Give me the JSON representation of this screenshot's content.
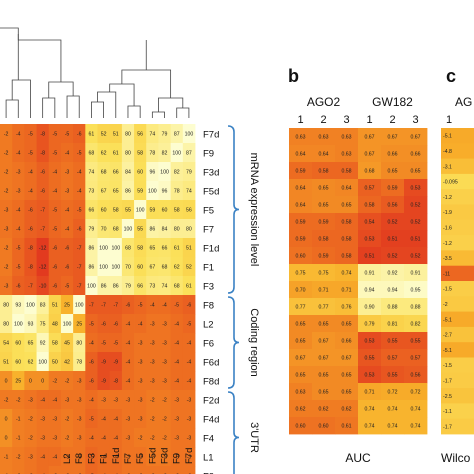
{
  "chart_data": [
    {
      "type": "heatmap",
      "title": "",
      "rows": [
        "F7d",
        "F9",
        "F3d",
        "F5d",
        "F5",
        "F7",
        "F1d",
        "F1",
        "F3",
        "F8",
        "L2",
        "F6",
        "F6d",
        "F8d",
        "F2d",
        "F4d",
        "F4",
        "L1",
        "F2"
      ],
      "columns": [
        "?",
        "?",
        "?",
        "?",
        "?",
        "L2",
        "F8",
        "F3",
        "F1",
        "F1d",
        "F7",
        "F5",
        "F5d",
        "F3d",
        "F9",
        "F7d"
      ],
      "column_labels_visible": [
        "",
        "",
        "",
        "",
        "",
        "L2",
        "F8",
        "F3",
        "F1",
        "F1d",
        "F7",
        "F5",
        "F5d",
        "F3d",
        "F9",
        "F7d"
      ],
      "values": [
        [
          -2,
          -4,
          -5,
          -8,
          -5,
          -5,
          -6,
          61,
          52,
          51,
          80,
          56,
          74,
          79,
          87,
          100
        ],
        [
          -2,
          -4,
          -5,
          -8,
          -5,
          -4,
          -5,
          68,
          62,
          61,
          80,
          58,
          78,
          82,
          100,
          87
        ],
        [
          -2,
          -3,
          -4,
          -6,
          -4,
          -3,
          -4,
          74,
          68,
          66,
          84,
          60,
          96,
          100,
          82,
          79
        ],
        [
          -2,
          -3,
          -4,
          -6,
          -4,
          -3,
          -4,
          73,
          67,
          65,
          86,
          59,
          100,
          96,
          78,
          74
        ],
        [
          -3,
          -4,
          -6,
          -7,
          -5,
          -4,
          -5,
          66,
          60,
          58,
          55,
          100,
          59,
          60,
          58,
          56
        ],
        [
          -3,
          -4,
          -6,
          -7,
          -5,
          -4,
          -6,
          79,
          70,
          68,
          100,
          55,
          86,
          84,
          80,
          80
        ],
        [
          -2,
          -5,
          -8,
          -12,
          -6,
          -6,
          -7,
          86,
          100,
          100,
          68,
          58,
          65,
          66,
          61,
          51
        ],
        [
          -2,
          -5,
          -8,
          -12,
          -6,
          -6,
          -7,
          86,
          100,
          100,
          70,
          60,
          67,
          68,
          62,
          52
        ],
        [
          -3,
          -6,
          -7,
          -10,
          -6,
          -5,
          -7,
          100,
          86,
          86,
          79,
          66,
          73,
          74,
          68,
          61
        ],
        [
          80,
          93,
          100,
          83,
          51,
          25,
          100,
          -7,
          -7,
          -7,
          -6,
          -5,
          -4,
          -4,
          -5,
          -6
        ],
        [
          80,
          100,
          93,
          75,
          48,
          100,
          25,
          -5,
          -6,
          -6,
          -4,
          -4,
          -3,
          -3,
          -4,
          -5
        ],
        [
          54,
          60,
          65,
          92,
          58,
          45,
          80,
          -4,
          -5,
          -5,
          -4,
          -3,
          -3,
          -3,
          -4,
          -4
        ],
        [
          51,
          60,
          62,
          100,
          50,
          42,
          78,
          -6,
          -9,
          -9,
          -4,
          -3,
          -3,
          -3,
          -4,
          -4
        ],
        [
          0,
          25,
          0,
          0,
          -2,
          -2,
          -3,
          -6,
          -9,
          -8,
          -4,
          -3,
          -3,
          -3,
          -4,
          -4
        ],
        [
          -2,
          -2,
          -3,
          -4,
          -4,
          -3,
          -3,
          -4,
          -3,
          -3,
          -3,
          -3,
          -2,
          -2,
          -3,
          -3
        ],
        [
          0,
          -1,
          -2,
          -3,
          -3,
          -2,
          -3,
          -5,
          -4,
          -4,
          -3,
          -3,
          -2,
          -2,
          -3,
          -3
        ],
        [
          0,
          -1,
          -2,
          -3,
          -3,
          -2,
          -3,
          -4,
          -4,
          -4,
          -3,
          -2,
          -2,
          -2,
          -3,
          -3
        ],
        [
          -1,
          -2,
          -3,
          -4,
          -4,
          -3,
          -3,
          -5,
          -4,
          -4,
          -3,
          -3,
          -2,
          -2,
          -3,
          -3
        ],
        [
          -1,
          -2,
          -3,
          -4,
          -3,
          -3,
          -3,
          -5,
          -4,
          -4,
          -3,
          -3,
          -3,
          -3,
          -3,
          -3
        ]
      ],
      "group_labels": [
        "mRNA expression level",
        "Coding region",
        "3'UTR"
      ],
      "dendrogram": "hierarchical clustering of columns"
    },
    {
      "type": "heatmap",
      "panel_label": "b",
      "title": "",
      "column_groups": [
        "AGO2",
        "GW182"
      ],
      "columns": [
        "1",
        "2",
        "3",
        "1",
        "2",
        "3"
      ],
      "xlabel": "AUC",
      "values": [
        [
          0.63,
          0.63,
          0.63,
          0.67,
          0.67,
          0.67
        ],
        [
          0.64,
          0.64,
          0.63,
          0.67,
          0.66,
          0.66
        ],
        [
          0.59,
          0.58,
          0.58,
          0.68,
          0.65,
          0.65
        ],
        [
          0.64,
          0.65,
          0.64,
          0.57,
          0.59,
          0.53
        ],
        [
          0.64,
          0.65,
          0.65,
          0.58,
          0.56,
          0.52
        ],
        [
          0.59,
          0.59,
          0.58,
          0.54,
          0.52,
          0.52
        ],
        [
          0.59,
          0.58,
          0.58,
          0.53,
          0.51,
          0.51
        ],
        [
          0.6,
          0.59,
          0.58,
          0.51,
          0.52,
          0.52
        ],
        [
          0.75,
          0.75,
          0.74,
          0.91,
          0.92,
          0.91
        ],
        [
          0.7,
          0.71,
          0.71,
          0.94,
          0.94,
          0.95
        ],
        [
          0.77,
          0.77,
          0.76,
          0.9,
          0.88,
          0.88
        ],
        [
          0.65,
          0.65,
          0.65,
          0.79,
          0.81,
          0.82
        ],
        [
          0.65,
          0.67,
          0.66,
          0.53,
          0.55,
          0.55
        ],
        [
          0.67,
          0.67,
          0.67,
          0.55,
          0.57,
          0.57
        ],
        [
          0.65,
          0.65,
          0.65,
          0.53,
          0.55,
          0.56
        ],
        [
          0.63,
          0.65,
          0.65,
          0.71,
          0.72,
          0.72
        ],
        [
          0.62,
          0.62,
          0.62,
          0.74,
          0.74,
          0.74
        ],
        [
          0.6,
          0.6,
          0.61,
          0.74,
          0.74,
          0.74
        ]
      ]
    },
    {
      "type": "heatmap",
      "panel_label": "c",
      "title": "",
      "column_groups": [
        "AG"
      ],
      "columns": [
        "1"
      ],
      "xlabel": "Wilco",
      "values": [
        [
          -5.1
        ],
        [
          -4.8
        ],
        [
          -3.1
        ],
        [
          -0.095
        ],
        [
          -1.2
        ],
        [
          -1.9
        ],
        [
          -1.6
        ],
        [
          -1.2
        ],
        [
          -3.5
        ],
        [
          -11
        ],
        [
          -1.5
        ],
        [
          -2.0
        ],
        [
          -5.1
        ],
        [
          -2.7
        ],
        [
          -5.1
        ],
        [
          -1.5
        ],
        [
          -1.7
        ],
        [
          -2.5
        ],
        [
          -1.1
        ],
        [
          -1.7
        ]
      ]
    }
  ],
  "row_labels_b_c_visible": false,
  "colors": {
    "high": "#fdfdd0",
    "mid": "#f8b02a",
    "low": "#e23a1f"
  }
}
